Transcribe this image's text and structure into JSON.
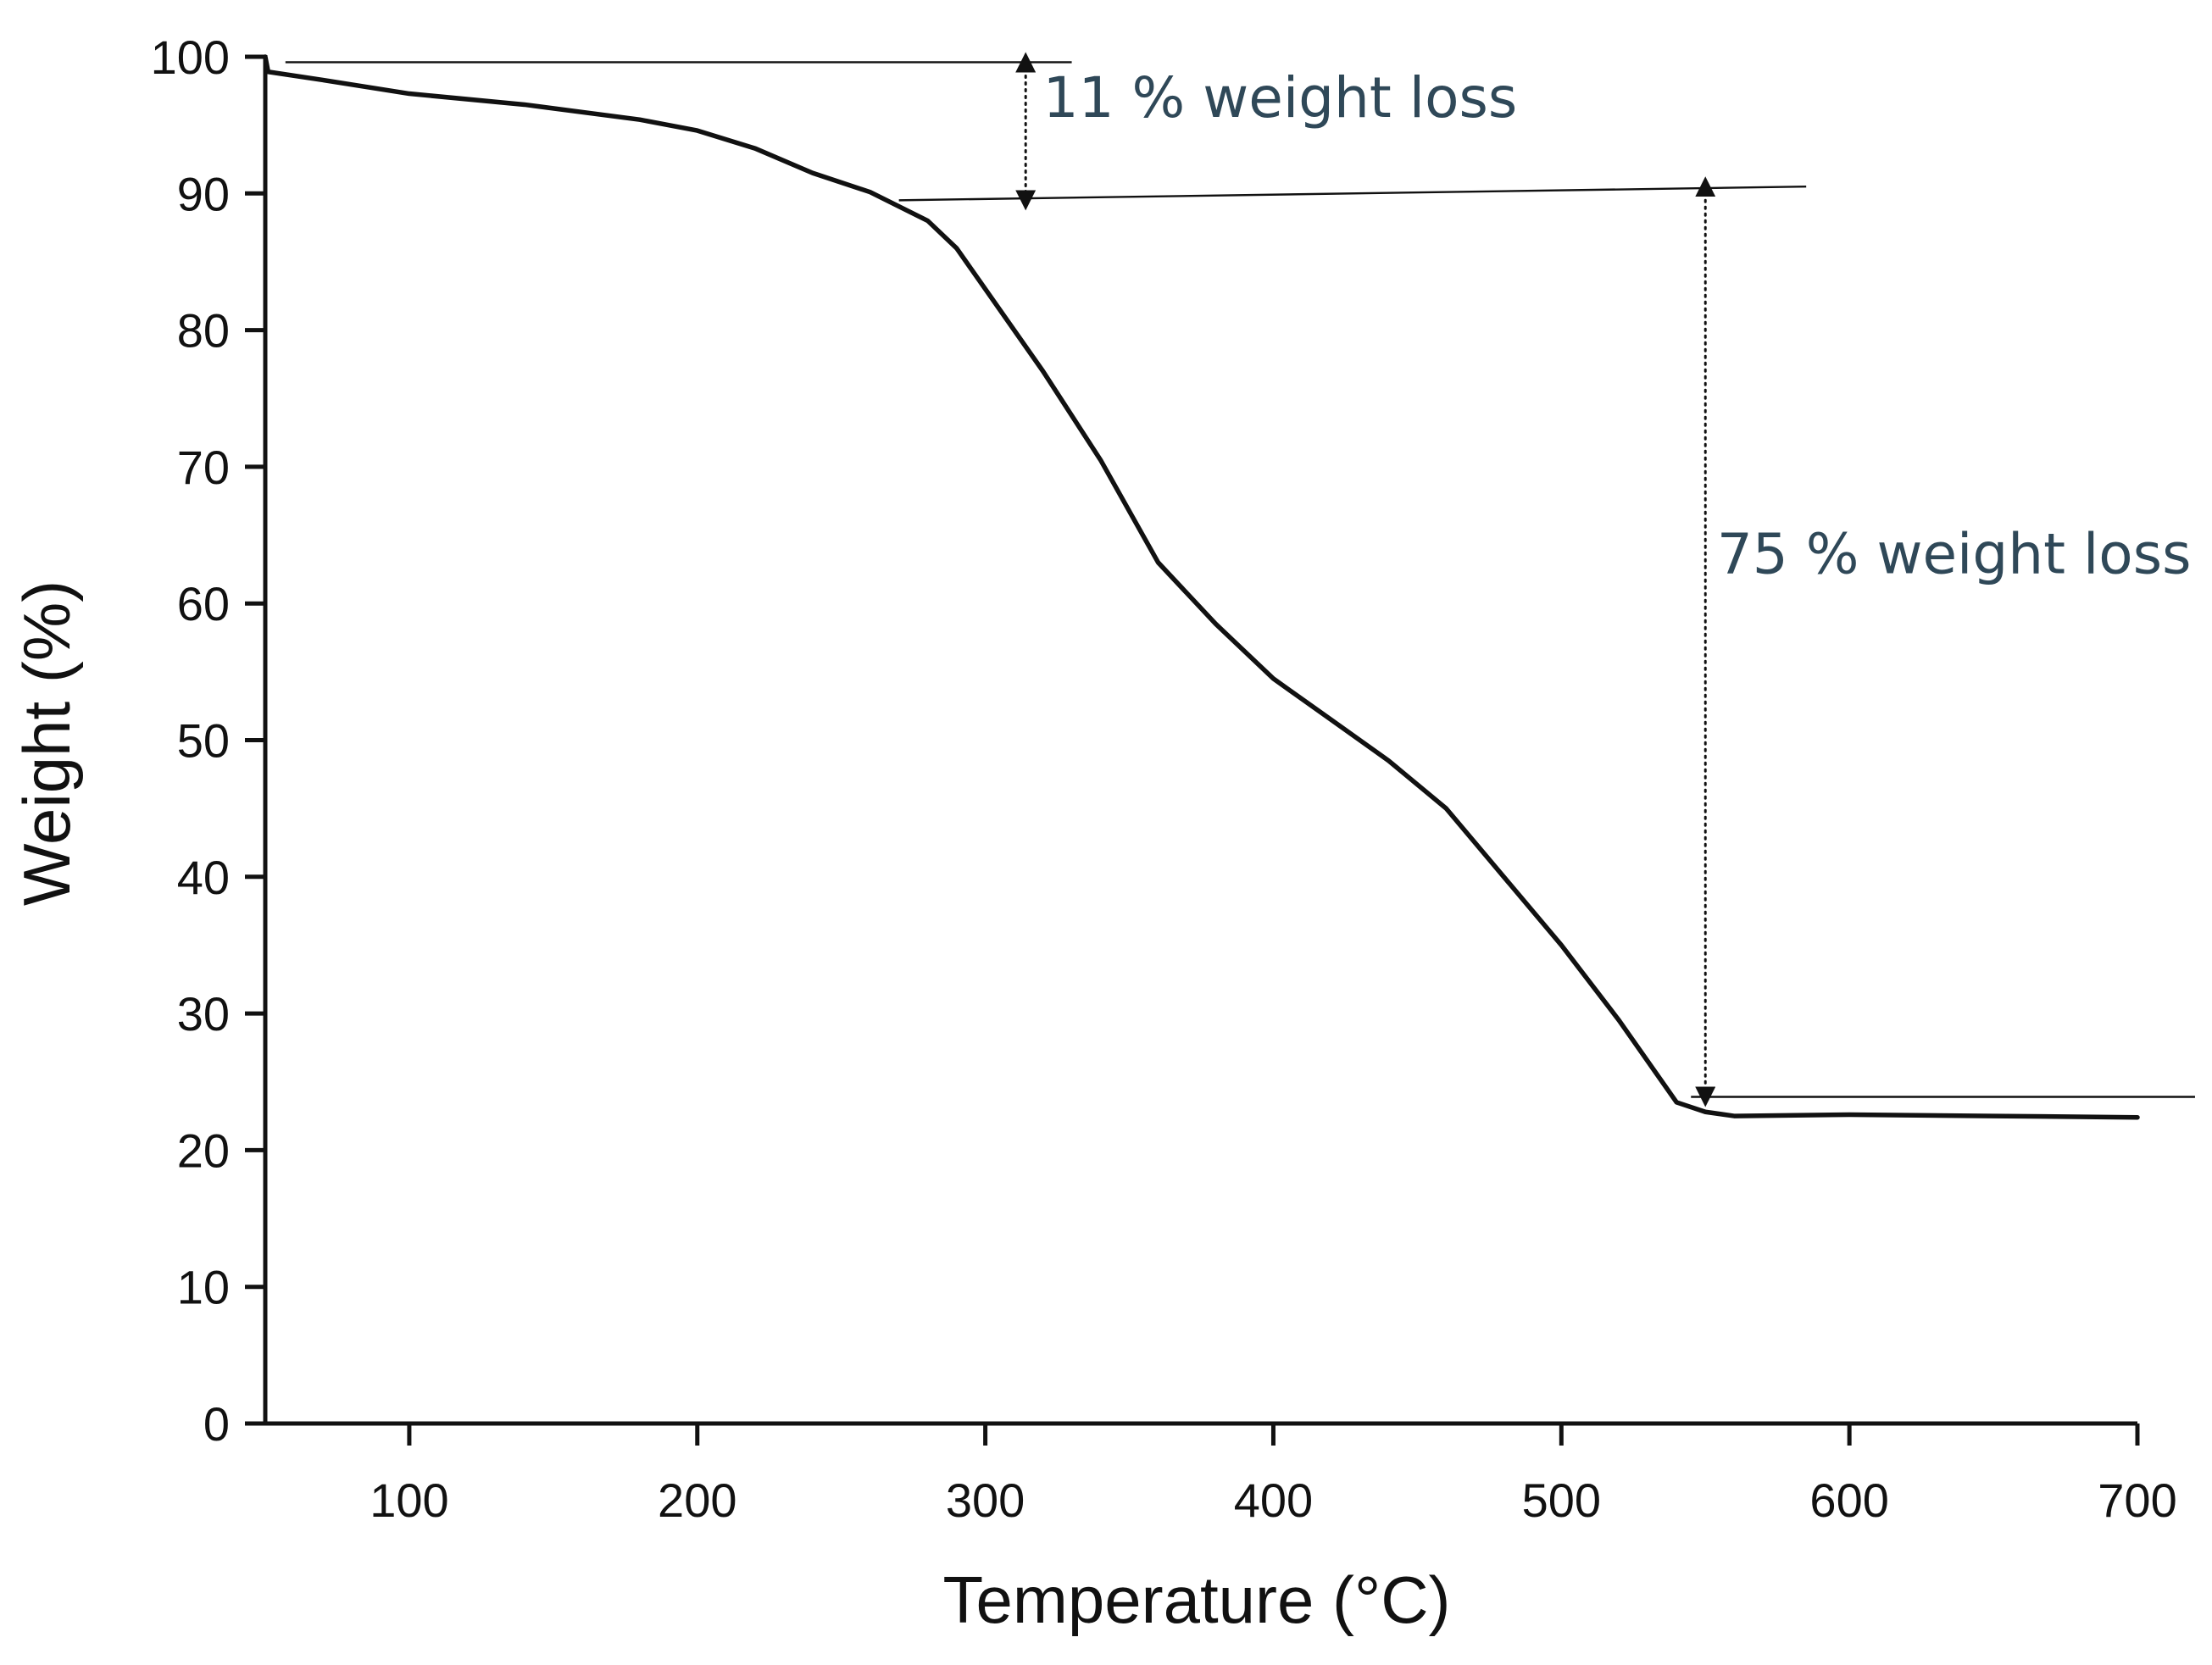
{
  "chart_data": {
    "type": "line",
    "title": "",
    "xlabel": "Temperature (°C)",
    "ylabel": "Weight (%)",
    "xlim": [
      50,
      700
    ],
    "ylim": [
      0,
      100
    ],
    "x_ticks": [
      100,
      200,
      300,
      400,
      500,
      600,
      700
    ],
    "y_ticks": [
      0,
      10,
      20,
      30,
      40,
      50,
      60,
      70,
      80,
      90,
      100
    ],
    "grid": false,
    "series": [
      {
        "name": "Weight",
        "color": "#111111",
        "points": [
          [
            50,
            100
          ],
          [
            51,
            98.9
          ],
          [
            70,
            98.3
          ],
          [
            100,
            97.3
          ],
          [
            140,
            96.5
          ],
          [
            180,
            95.4
          ],
          [
            200,
            94.6
          ],
          [
            220,
            93.3
          ],
          [
            240,
            91.5
          ],
          [
            260,
            90.1
          ],
          [
            280,
            88.0
          ],
          [
            290,
            86.0
          ],
          [
            300,
            83.0
          ],
          [
            320,
            77.0
          ],
          [
            340,
            70.5
          ],
          [
            360,
            63.0
          ],
          [
            380,
            58.5
          ],
          [
            400,
            54.5
          ],
          [
            420,
            51.5
          ],
          [
            440,
            48.5
          ],
          [
            460,
            45.0
          ],
          [
            480,
            40.0
          ],
          [
            500,
            35.0
          ],
          [
            520,
            29.5
          ],
          [
            540,
            23.5
          ],
          [
            550,
            22.8
          ],
          [
            560,
            22.5
          ],
          [
            600,
            22.6
          ],
          [
            650,
            22.5
          ],
          [
            700,
            22.4
          ]
        ]
      }
    ],
    "reference_lines": [
      {
        "name": "upper-baseline",
        "from": [
          57,
          99.6
        ],
        "to": [
          330,
          99.6
        ]
      },
      {
        "name": "middle-baseline",
        "from": [
          270,
          89.5
        ],
        "to": [
          585,
          90.5
        ]
      },
      {
        "name": "lower-baseline",
        "from": [
          545,
          23.9
        ],
        "to": [
          720,
          23.9
        ]
      }
    ],
    "annotations": [
      {
        "text": "11 % weight loss",
        "arrow_x": 314,
        "arrow_from": 99.6,
        "arrow_to": 89.5,
        "label_x": 320,
        "label_y": 95.6
      },
      {
        "text": "75 % weight loss",
        "arrow_x": 550,
        "arrow_from": 90.5,
        "arrow_to": 23.9,
        "label_x": 554,
        "label_y": 62.2
      }
    ]
  }
}
